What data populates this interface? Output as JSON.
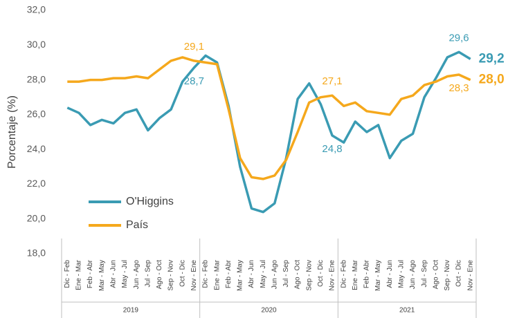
{
  "chart_data": {
    "type": "line",
    "y_label": "Porcentaje (%)",
    "categories": [
      "Dic - Feb",
      "Ene - Mar",
      "Feb - Abr",
      "Mar - May",
      "Abr - Jun",
      "May - Jul",
      "Jun - Ago",
      "Jul - Sep",
      "Ago - Oct",
      "Sep - Nov",
      "Oct - Dic",
      "Nov - Ene",
      "Dic - Feb",
      "Ene - Mar",
      "Feb - Abr",
      "Mar - May",
      "Abr - Jun",
      "May - Jul",
      "Jun - Ago",
      "Jul - Sep",
      "Ago - Oct",
      "Sep - Nov",
      "Oct - Dic",
      "Nov - Ene",
      "Dic - Feb",
      "Ene - Mar",
      "Feb - Abr",
      "Mar - May",
      "Abr - Jun",
      "May - Jul",
      "Jun - Ago",
      "Jul - Sep",
      "Ago - Oct",
      "Sep - Nov",
      "Oct - Dic",
      "Nov - Ene"
    ],
    "groups": [
      "2019",
      "2020",
      "2021"
    ],
    "series": [
      {
        "name": "O'Higgins",
        "color": "#3a9bb3",
        "values": [
          26.4,
          26.1,
          25.4,
          25.7,
          25.5,
          26.1,
          26.3,
          25.1,
          25.8,
          26.3,
          27.9,
          28.7,
          29.4,
          29.0,
          26.5,
          23.0,
          20.6,
          20.4,
          20.9,
          23.5,
          26.9,
          27.8,
          26.6,
          24.8,
          24.4,
          25.6,
          25.0,
          25.4,
          23.5,
          24.5,
          24.9,
          27.0,
          28.1,
          29.3,
          29.6,
          29.2
        ],
        "value_labels": [
          null,
          null,
          null,
          null,
          null,
          null,
          null,
          null,
          null,
          null,
          null,
          "28,7",
          null,
          null,
          null,
          null,
          null,
          null,
          null,
          null,
          null,
          null,
          null,
          "24,8",
          null,
          null,
          null,
          null,
          null,
          null,
          null,
          null,
          null,
          null,
          "29,6",
          "29,2"
        ]
      },
      {
        "name": "País",
        "color": "#f5a81c",
        "values": [
          27.9,
          27.9,
          28.0,
          28.0,
          28.1,
          28.1,
          28.2,
          28.1,
          28.6,
          29.1,
          29.3,
          29.1,
          29.0,
          28.9,
          26.3,
          23.5,
          22.4,
          22.3,
          22.5,
          23.4,
          25.0,
          26.7,
          27.0,
          27.1,
          26.5,
          26.7,
          26.2,
          26.1,
          26.0,
          26.9,
          27.1,
          27.7,
          27.9,
          28.2,
          28.3,
          28.0
        ],
        "value_labels": [
          null,
          null,
          null,
          null,
          null,
          null,
          null,
          null,
          null,
          null,
          null,
          "29,1",
          null,
          null,
          null,
          null,
          null,
          null,
          null,
          null,
          null,
          null,
          null,
          "27,1",
          null,
          null,
          null,
          null,
          null,
          null,
          null,
          null,
          null,
          null,
          "28,3",
          "28,0"
        ]
      }
    ],
    "ylim": [
      18,
      32
    ],
    "yticks": [
      {
        "value": 18,
        "label": "18,0"
      },
      {
        "value": 20,
        "label": "20,0"
      },
      {
        "value": 22,
        "label": "22,0"
      },
      {
        "value": 24,
        "label": "24,0"
      },
      {
        "value": 26,
        "label": "26,0"
      },
      {
        "value": 28,
        "label": "28,0"
      },
      {
        "value": 30,
        "label": "30,0"
      },
      {
        "value": 32,
        "label": "32,0"
      }
    ],
    "grid": false,
    "legend": "lower left"
  }
}
